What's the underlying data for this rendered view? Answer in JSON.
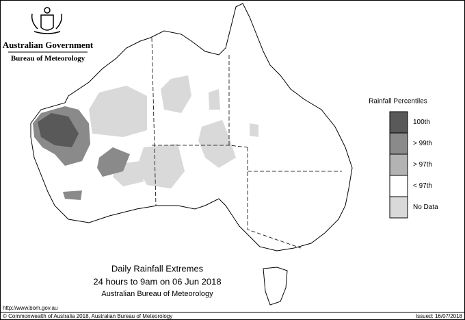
{
  "header": {
    "government": "Australian Government",
    "agency": "Bureau of Meteorology"
  },
  "legend": {
    "title": "Rainfall Percentiles",
    "items": [
      {
        "label": "100th",
        "color": "#595959"
      },
      {
        "label": "> 99th",
        "color": "#8a8a8a"
      },
      {
        "label": "> 97th",
        "color": "#b3b3b3"
      },
      {
        "label": "< 97th",
        "color": "#ffffff"
      },
      {
        "label": "No Data",
        "color": "#d9d9d9"
      }
    ]
  },
  "map_title": {
    "line1": "Daily Rainfall Extremes",
    "line2": "24 hours to 9am on 06 Jun 2018",
    "line3": "Australian Bureau of Meteorology"
  },
  "footer": {
    "url": "http://www.bom.gov.au",
    "copyright": "© Commonwealth of Australia 2018, Australian Bureau of Meteorology",
    "issued": "Issued: 16/07/2018"
  }
}
